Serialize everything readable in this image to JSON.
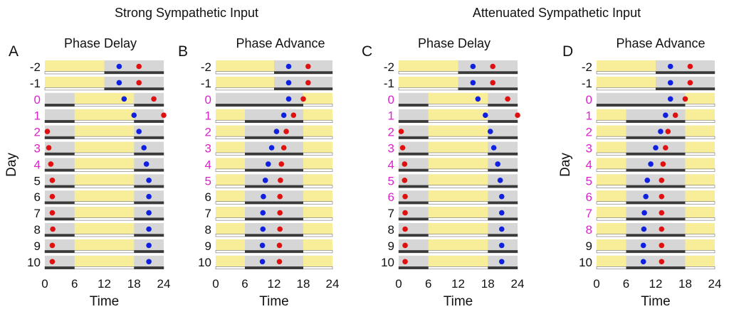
{
  "suptitles": [
    "Strong Sympathetic Input",
    "Attenuated Sympathetic Input"
  ],
  "colors": {
    "light": "#f8ee99",
    "dark": "#d6d6d6",
    "dark_bar": "#3a3a3a",
    "blue": "#1020e0",
    "red": "#e01010",
    "magenta": "#dd22cc",
    "black": "#111111"
  },
  "chart_data": [
    {
      "type": "scatter",
      "panel_letter": "A",
      "title": "Phase Delay",
      "xlabel": "Time",
      "ylabel": "Day",
      "xlim": [
        0,
        24
      ],
      "xticks": [
        0,
        6,
        12,
        18,
        24
      ],
      "days": [
        "-2",
        "-1",
        "0",
        "1",
        "2",
        "3",
        "4",
        "5",
        "6",
        "7",
        "8",
        "9",
        "10"
      ],
      "magenta_days": [
        "0",
        "1",
        "2",
        "3",
        "4"
      ],
      "light_intervals": [
        [
          [
            0,
            12
          ]
        ],
        [
          [
            0,
            12
          ]
        ],
        [
          [
            6,
            18
          ]
        ],
        [
          [
            6,
            18
          ]
        ],
        [
          [
            6,
            18
          ]
        ],
        [
          [
            6,
            18
          ]
        ],
        [
          [
            6,
            18
          ]
        ],
        [
          [
            6,
            18
          ]
        ],
        [
          [
            6,
            18
          ]
        ],
        [
          [
            6,
            18
          ]
        ],
        [
          [
            6,
            18
          ]
        ],
        [
          [
            6,
            18
          ]
        ],
        [
          [
            6,
            18
          ]
        ]
      ],
      "series": [
        {
          "color": "blue",
          "values": [
            15.0,
            15.0,
            16.0,
            18.0,
            19.0,
            20.0,
            20.5,
            21.0,
            21.0,
            21.0,
            21.0,
            21.0,
            21.0
          ]
        },
        {
          "color": "red",
          "values": [
            19.0,
            19.0,
            22.0,
            24.0,
            0.5,
            0.8,
            1.2,
            1.5,
            1.5,
            1.5,
            1.6,
            1.5,
            1.5
          ]
        }
      ]
    },
    {
      "type": "scatter",
      "panel_letter": "B",
      "title": "Phase Advance",
      "xlabel": "Time",
      "ylabel": "",
      "xlim": [
        0,
        24
      ],
      "xticks": [
        0,
        6,
        12,
        18,
        24
      ],
      "days": [
        "-2",
        "-1",
        "0",
        "1",
        "2",
        "3",
        "4",
        "5",
        "6",
        "7",
        "8",
        "9",
        "10"
      ],
      "magenta_days": [
        "0",
        "1",
        "2",
        "3",
        "4",
        "5"
      ],
      "light_intervals": [
        [
          [
            0,
            12
          ]
        ],
        [
          [
            0,
            12
          ]
        ],
        [
          [
            18,
            24
          ]
        ],
        [
          [
            0,
            6
          ],
          [
            18,
            24
          ]
        ],
        [
          [
            0,
            6
          ],
          [
            18,
            24
          ]
        ],
        [
          [
            0,
            6
          ],
          [
            18,
            24
          ]
        ],
        [
          [
            0,
            6
          ],
          [
            18,
            24
          ]
        ],
        [
          [
            0,
            6
          ],
          [
            18,
            24
          ]
        ],
        [
          [
            0,
            6
          ],
          [
            18,
            24
          ]
        ],
        [
          [
            0,
            6
          ],
          [
            18,
            24
          ]
        ],
        [
          [
            0,
            6
          ],
          [
            18,
            24
          ]
        ],
        [
          [
            0,
            6
          ],
          [
            18,
            24
          ]
        ],
        [
          [
            0,
            6
          ],
          [
            18,
            24
          ]
        ]
      ],
      "series": [
        {
          "color": "blue",
          "values": [
            15.0,
            15.0,
            15.0,
            14.0,
            12.5,
            11.5,
            10.8,
            10.2,
            9.8,
            9.7,
            9.7,
            9.6,
            9.6
          ]
        },
        {
          "color": "red",
          "values": [
            19.0,
            19.0,
            18.0,
            16.0,
            14.5,
            14.0,
            13.5,
            13.3,
            13.2,
            13.2,
            13.2,
            13.1,
            13.1
          ]
        }
      ]
    },
    {
      "type": "scatter",
      "panel_letter": "C",
      "title": "Phase Delay",
      "xlabel": "Time",
      "ylabel": "",
      "xlim": [
        0,
        24
      ],
      "xticks": [
        0,
        6,
        12,
        18,
        24
      ],
      "days": [
        "-2",
        "-1",
        "0",
        "1",
        "2",
        "3",
        "4",
        "5",
        "6",
        "7",
        "8",
        "9",
        "10"
      ],
      "magenta_days": [
        "0",
        "1",
        "2",
        "3",
        "4",
        "5",
        "6"
      ],
      "light_intervals": [
        [
          [
            0,
            12
          ]
        ],
        [
          [
            0,
            12
          ]
        ],
        [
          [
            6,
            18
          ]
        ],
        [
          [
            6,
            18
          ]
        ],
        [
          [
            6,
            18
          ]
        ],
        [
          [
            6,
            18
          ]
        ],
        [
          [
            6,
            18
          ]
        ],
        [
          [
            6,
            18
          ]
        ],
        [
          [
            6,
            18
          ]
        ],
        [
          [
            6,
            18
          ]
        ],
        [
          [
            6,
            18
          ]
        ],
        [
          [
            6,
            18
          ]
        ],
        [
          [
            6,
            18
          ]
        ]
      ],
      "series": [
        {
          "color": "blue",
          "values": [
            15.0,
            15.0,
            16.0,
            17.5,
            18.5,
            19.2,
            20.0,
            20.5,
            20.8,
            20.8,
            20.8,
            20.8,
            20.8
          ]
        },
        {
          "color": "red",
          "values": [
            19.0,
            19.0,
            22.0,
            24.0,
            0.5,
            0.8,
            1.2,
            1.2,
            1.3,
            1.3,
            1.3,
            1.3,
            1.3
          ]
        }
      ]
    },
    {
      "type": "scatter",
      "panel_letter": "D",
      "title": "Phase Advance",
      "xlabel": "Time",
      "ylabel": "Day",
      "xlim": [
        0,
        24
      ],
      "xticks": [
        0,
        6,
        12,
        18,
        24
      ],
      "days": [
        "-2",
        "-1",
        "0",
        "1",
        "2",
        "3",
        "4",
        "5",
        "6",
        "7",
        "8",
        "9",
        "10"
      ],
      "magenta_days": [
        "0",
        "1",
        "2",
        "3",
        "4",
        "5",
        "6",
        "7",
        "8"
      ],
      "light_intervals": [
        [
          [
            0,
            12
          ]
        ],
        [
          [
            0,
            12
          ]
        ],
        [
          [
            18,
            24
          ]
        ],
        [
          [
            0,
            6
          ],
          [
            18,
            24
          ]
        ],
        [
          [
            0,
            6
          ],
          [
            18,
            24
          ]
        ],
        [
          [
            0,
            6
          ],
          [
            18,
            24
          ]
        ],
        [
          [
            0,
            6
          ],
          [
            18,
            24
          ]
        ],
        [
          [
            0,
            6
          ],
          [
            18,
            24
          ]
        ],
        [
          [
            0,
            6
          ],
          [
            18,
            24
          ]
        ],
        [
          [
            0,
            6
          ],
          [
            18,
            24
          ]
        ],
        [
          [
            0,
            6
          ],
          [
            18,
            24
          ]
        ],
        [
          [
            0,
            6
          ],
          [
            18,
            24
          ]
        ],
        [
          [
            0,
            6
          ],
          [
            18,
            24
          ]
        ]
      ],
      "series": [
        {
          "color": "blue",
          "values": [
            15.0,
            15.0,
            15.0,
            14.0,
            13.0,
            12.0,
            11.0,
            10.3,
            10.0,
            9.7,
            9.6,
            9.5,
            9.5
          ]
        },
        {
          "color": "red",
          "values": [
            19.0,
            19.0,
            18.0,
            16.0,
            14.5,
            14.0,
            13.5,
            13.2,
            13.2,
            13.2,
            13.2,
            13.2,
            13.2
          ]
        }
      ]
    }
  ]
}
